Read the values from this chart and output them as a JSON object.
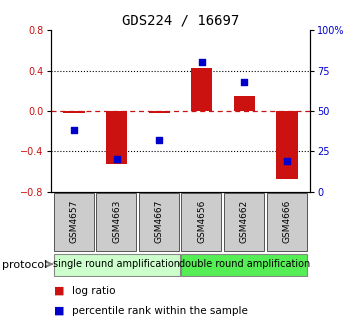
{
  "title": "GDS224 / 16697",
  "samples": [
    "GSM4657",
    "GSM4663",
    "GSM4667",
    "GSM4656",
    "GSM4662",
    "GSM4666"
  ],
  "log_ratios": [
    -0.02,
    -0.53,
    -0.02,
    0.43,
    0.15,
    -0.68
  ],
  "percentile_ranks": [
    38,
    20,
    32,
    80,
    68,
    19
  ],
  "bar_color": "#cc1111",
  "dot_color": "#0000cc",
  "ylim_left": [
    -0.8,
    0.8
  ],
  "ylim_right": [
    0,
    100
  ],
  "yticks_left": [
    -0.8,
    -0.4,
    0,
    0.4,
    0.8
  ],
  "yticks_right": [
    0,
    25,
    50,
    75,
    100
  ],
  "dotted_lines": [
    -0.4,
    0.4
  ],
  "groups": [
    {
      "label": "single round amplification",
      "start": 0,
      "end": 3,
      "color": "#ccffcc"
    },
    {
      "label": "double round amplification",
      "start": 3,
      "end": 6,
      "color": "#55ee55"
    }
  ],
  "protocol_label": "protocol",
  "legend": [
    {
      "label": "log ratio",
      "color": "#cc1111"
    },
    {
      "label": "percentile rank within the sample",
      "color": "#0000cc"
    }
  ],
  "bar_width": 0.5,
  "tick_label_fontsize": 7,
  "title_fontsize": 10,
  "group_fontsize": 7,
  "legend_fontsize": 7.5,
  "sample_fontsize": 6.5
}
